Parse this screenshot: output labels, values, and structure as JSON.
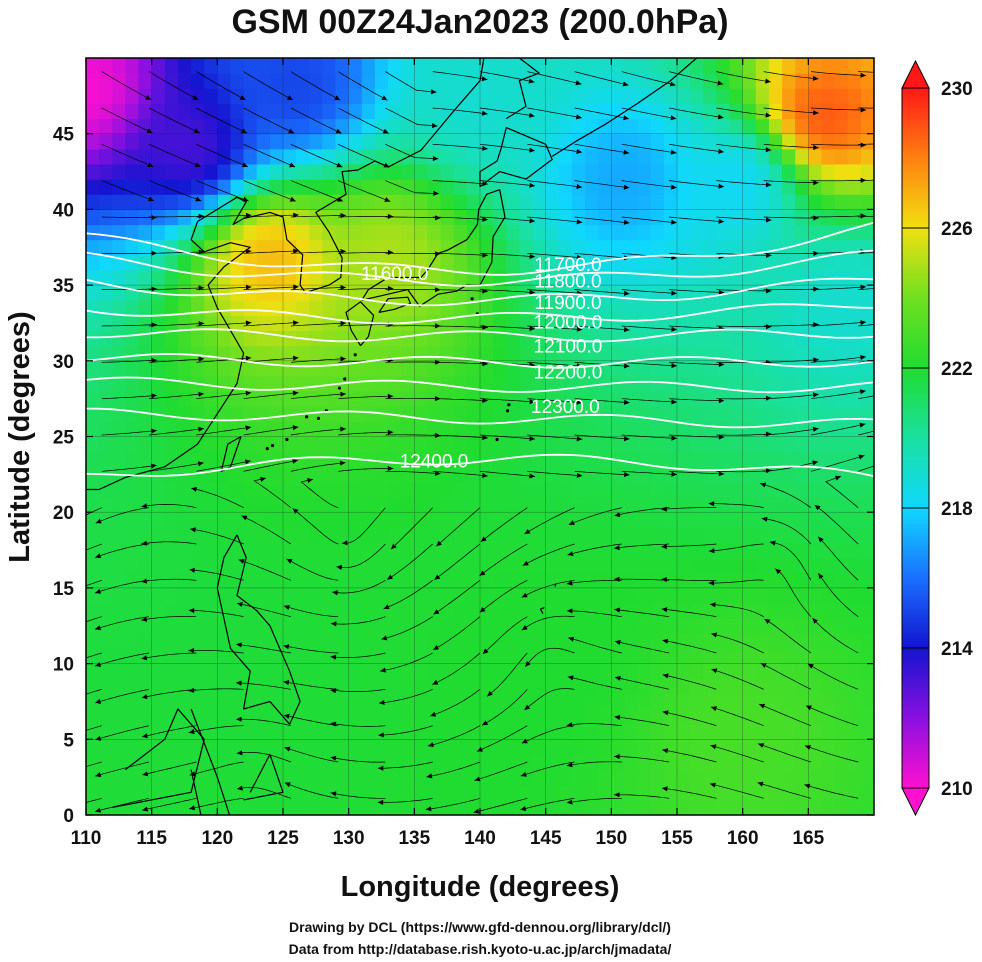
{
  "chart_data": {
    "type": "heatmap",
    "title": "GSM 00Z24Jan2023 (200.0hPa)",
    "xlabel": "Longitude (degrees)",
    "ylabel": "Latitude  (degrees)",
    "xlim": [
      110,
      170
    ],
    "ylim": [
      0,
      50
    ],
    "x_ticks": [
      110,
      115,
      120,
      125,
      130,
      135,
      140,
      145,
      150,
      155,
      160,
      165
    ],
    "y_ticks": [
      0,
      5,
      10,
      15,
      20,
      25,
      30,
      35,
      40,
      45
    ],
    "colorbar": {
      "min": 210,
      "max": 230,
      "ticks": [
        210,
        214,
        218,
        222,
        226,
        230
      ],
      "stops": [
        "#ff10d0",
        "#8a10e0",
        "#1414d0",
        "#1a70ff",
        "#10d8ff",
        "#1ae0a0",
        "#20dc30",
        "#70e020",
        "#f0e010",
        "#ff8010",
        "#ff1818"
      ]
    },
    "field_features": [
      {
        "lon": 110,
        "lat": 48,
        "value": 210
      },
      {
        "lon": 118,
        "lat": 44,
        "value": 213
      },
      {
        "lon": 126,
        "lat": 48,
        "value": 215
      },
      {
        "lon": 140,
        "lat": 47,
        "value": 219
      },
      {
        "lon": 124,
        "lat": 37,
        "value": 227
      },
      {
        "lon": 133,
        "lat": 37,
        "value": 225
      },
      {
        "lon": 151,
        "lat": 42,
        "value": 217
      },
      {
        "lon": 166,
        "lat": 46,
        "value": 229
      },
      {
        "lon": 160,
        "lat": 42,
        "value": 218
      },
      {
        "lon": 168,
        "lat": 34,
        "value": 219
      },
      {
        "lon": 145,
        "lat": 10,
        "value": 222
      },
      {
        "lon": 160,
        "lat": 5,
        "value": 223
      }
    ],
    "contours": [
      {
        "label": "11600.0",
        "value": 11600,
        "lat_at_110": 38.2,
        "lat_at_140": 36.0,
        "lat_at_170": 38.8
      },
      {
        "label": "11700.0",
        "value": 11700,
        "lat_at_110": 36.8,
        "lat_at_140": 35.3,
        "lat_at_170": 37.0
      },
      {
        "label": "11800.0",
        "value": 11800,
        "lat_at_110": 35.2,
        "lat_at_140": 34.0,
        "lat_at_170": 35.4
      },
      {
        "label": "11900.0",
        "value": 11900,
        "lat_at_110": 33.5,
        "lat_at_140": 32.8,
        "lat_at_170": 33.8
      },
      {
        "label": "12000.0",
        "value": 12000,
        "lat_at_110": 31.9,
        "lat_at_140": 31.6,
        "lat_at_170": 31.9
      },
      {
        "label": "12100.0",
        "value": 12100,
        "lat_at_110": 30.2,
        "lat_at_140": 29.9,
        "lat_at_170": 30.0
      },
      {
        "label": "12200.0",
        "value": 12200,
        "lat_at_110": 28.6,
        "lat_at_140": 28.3,
        "lat_at_170": 28.3
      },
      {
        "label": "12300.0",
        "value": 12300,
        "lat_at_110": 26.5,
        "lat_at_140": 26.2,
        "lat_at_170": 25.8
      },
      {
        "label": "12400.0",
        "value": 12400,
        "lat_at_110": 22.3,
        "lat_at_140": 23.5,
        "lat_at_170": 22.3
      }
    ],
    "contour_labels": [
      {
        "text": "11600.0",
        "lon": 133.5,
        "lat": 35.8
      },
      {
        "text": "11700.0",
        "lon": 146.7,
        "lat": 36.4
      },
      {
        "text": "11800.0",
        "lon": 146.7,
        "lat": 35.3
      },
      {
        "text": "11900.0",
        "lon": 146.7,
        "lat": 33.9
      },
      {
        "text": "12000.0",
        "lon": 146.7,
        "lat": 32.6
      },
      {
        "text": "12100.0",
        "lon": 146.7,
        "lat": 31.0
      },
      {
        "text": "12200.0",
        "lon": 146.7,
        "lat": 29.3
      },
      {
        "text": "12300.0",
        "lon": 146.5,
        "lat": 27.0
      },
      {
        "text": "12400.0",
        "lon": 136.5,
        "lat": 23.4
      }
    ],
    "grid": true
  },
  "credits": {
    "line1": "Drawing by DCL (https://www.gfd-dennou.org/library/dcl/)",
    "line2": "Data from http://database.rish.kyoto-u.ac.jp/arch/jmadata/"
  }
}
